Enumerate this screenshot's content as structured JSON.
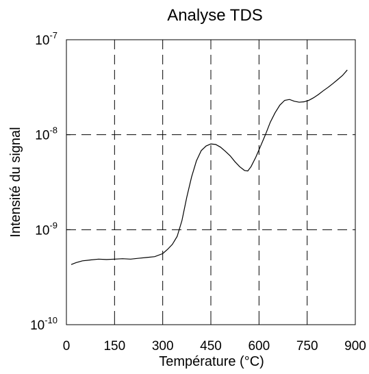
{
  "chart_data": {
    "type": "line",
    "title": "Analyse TDS",
    "xlabel": "Température (°C)",
    "ylabel": "Intensité du signal",
    "xlim": [
      0,
      900
    ],
    "ylim": [
      1e-10,
      1e-07
    ],
    "y_scale": "log",
    "x_ticks": [
      0,
      150,
      300,
      450,
      600,
      750,
      900
    ],
    "x_tick_labels": [
      "0",
      "150",
      "300",
      "450",
      "600",
      "750",
      "900"
    ],
    "y_ticks": [
      {
        "value": 1e-10,
        "base": "10",
        "exp": "-10"
      },
      {
        "value": 1e-09,
        "base": "10",
        "exp": "-9"
      },
      {
        "value": 1e-08,
        "base": "10",
        "exp": "-8"
      },
      {
        "value": 1e-07,
        "base": "10",
        "exp": "-7"
      }
    ],
    "grid": "dashed",
    "line_color": "#000000",
    "series": [
      {
        "x": [
          15,
          30,
          50,
          75,
          100,
          125,
          150,
          175,
          200,
          225,
          250,
          275,
          300,
          315,
          330,
          345,
          360,
          375,
          390,
          405,
          420,
          435,
          450,
          465,
          480,
          495,
          510,
          525,
          540,
          555,
          565,
          575,
          590,
          605,
          620,
          635,
          650,
          665,
          680,
          695,
          710,
          725,
          740,
          755,
          770,
          785,
          800,
          815,
          830,
          845,
          860,
          875
        ],
        "y": [
          4.3e-10,
          4.5e-10,
          4.7e-10,
          4.8e-10,
          4.9e-10,
          4.85e-10,
          4.9e-10,
          4.95e-10,
          4.9e-10,
          5e-10,
          5.1e-10,
          5.2e-10,
          5.6e-10,
          6.2e-10,
          7e-10,
          8.5e-10,
          1.25e-09,
          2.2e-09,
          3.6e-09,
          5.3e-09,
          6.8e-09,
          7.6e-09,
          8e-09,
          7.9e-09,
          7.4e-09,
          6.7e-09,
          6e-09,
          5.2e-09,
          4.6e-09,
          4.2e-09,
          4.15e-09,
          4.6e-09,
          5.8e-09,
          7.6e-09,
          1e-08,
          1.35e-08,
          1.7e-08,
          2.05e-08,
          2.3e-08,
          2.35e-08,
          2.25e-08,
          2.2e-08,
          2.22e-08,
          2.3e-08,
          2.45e-08,
          2.65e-08,
          2.9e-08,
          3.15e-08,
          3.45e-08,
          3.8e-08,
          4.2e-08,
          4.8e-08
        ]
      }
    ]
  }
}
